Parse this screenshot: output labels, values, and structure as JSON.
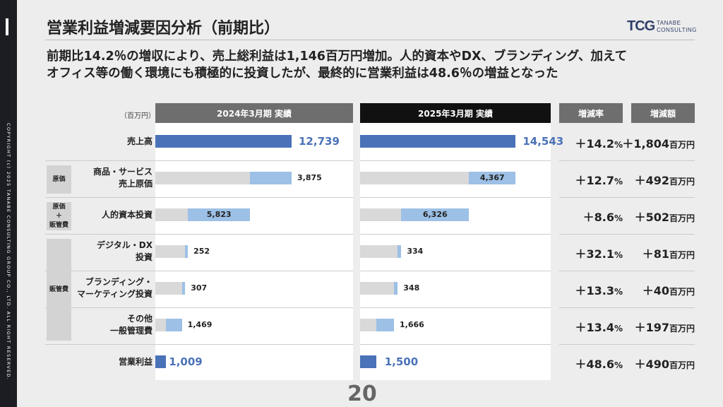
{
  "title": "営業利益増減要因分析（前期比）",
  "lead_line1": "前期比14.2％の増収により、売上総利益は1,146百万円増加。人的資本やDX、ブランディング、加えて",
  "lead_line2": "オフィス等の働く環境にも積極的に投資したが、最終的に営業利益は48.6％の増益となった",
  "logo": {
    "mark": "TCG",
    "line1": "TANABE",
    "line2": "CONSULTING"
  },
  "copyright": "COPYRIGHT (c) 2025 TANABE CONSULTING GROUP CO., LTD. ALL RIGHT RESERVED.",
  "page_number": "20",
  "colors": {
    "dark_blue": "#4a72b8",
    "light_blue": "#9dc0e6",
    "gray": "#d9d9d9",
    "value_blue": "#4a72b8",
    "header_2024": "#6e6e6e",
    "header_2025": "#111111"
  },
  "chart_data": {
    "type": "table",
    "unit_label": "（百万円）",
    "columns": [
      "2024年3月期 実績",
      "2025年3月期 実績",
      "増減率",
      "増減額"
    ],
    "groups": [
      {
        "label": "原価",
        "rows": [
          1
        ]
      },
      {
        "label": "原価\n＋\n販管費",
        "rows": [
          2
        ]
      },
      {
        "label": "販管費",
        "rows": [
          3,
          4,
          5
        ]
      }
    ],
    "rows": [
      {
        "label": "売上高",
        "v2024": "12,739",
        "v2025": "14,543",
        "n2024": 12739,
        "n2025": 14543,
        "offset2024": 0,
        "offset2025": 0,
        "style": "dark",
        "rate": "＋14.2",
        "amount": "＋1,804"
      },
      {
        "label": "商品・サービス\n売上原価",
        "v2024": "3,875",
        "v2025": "4,367",
        "n2024": 3875,
        "n2025": 4367,
        "offset2024": 8864,
        "offset2025": 10176,
        "style": "light",
        "rate": "＋12.7",
        "amount": "＋492"
      },
      {
        "label": "人的資本投資",
        "v2024": "5,823",
        "v2025": "6,326",
        "n2024": 5823,
        "n2025": 6326,
        "offset2024": 3041,
        "offset2025": 3850,
        "style": "light",
        "rate": "＋8.6",
        "amount": "＋502"
      },
      {
        "label": "デジタル・DX\n投資",
        "v2024": "252",
        "v2025": "334",
        "n2024": 252,
        "n2025": 334,
        "offset2024": 2789,
        "offset2025": 3516,
        "style": "light",
        "rate": "＋32.1",
        "amount": "＋81"
      },
      {
        "label": "ブランディング・\nマーケティング投資",
        "v2024": "307",
        "v2025": "348",
        "n2024": 307,
        "n2025": 348,
        "offset2024": 2482,
        "offset2025": 3168,
        "style": "light",
        "rate": "＋13.3",
        "amount": "＋40"
      },
      {
        "label": "その他\n一般管理費",
        "v2024": "1,469",
        "v2025": "1,666",
        "n2024": 1469,
        "n2025": 1666,
        "offset2024": 1013,
        "offset2025": 1502,
        "style": "light",
        "rate": "＋13.4",
        "amount": "＋197"
      },
      {
        "label": "営業利益",
        "v2024": "1,009",
        "v2025": "1,500",
        "n2024": 1009,
        "n2025": 1500,
        "offset2024": 0,
        "offset2025": 0,
        "style": "dark",
        "rate": "＋48.6",
        "amount": "＋490"
      }
    ],
    "rate_suffix": "%",
    "amount_suffix": "百万円"
  }
}
